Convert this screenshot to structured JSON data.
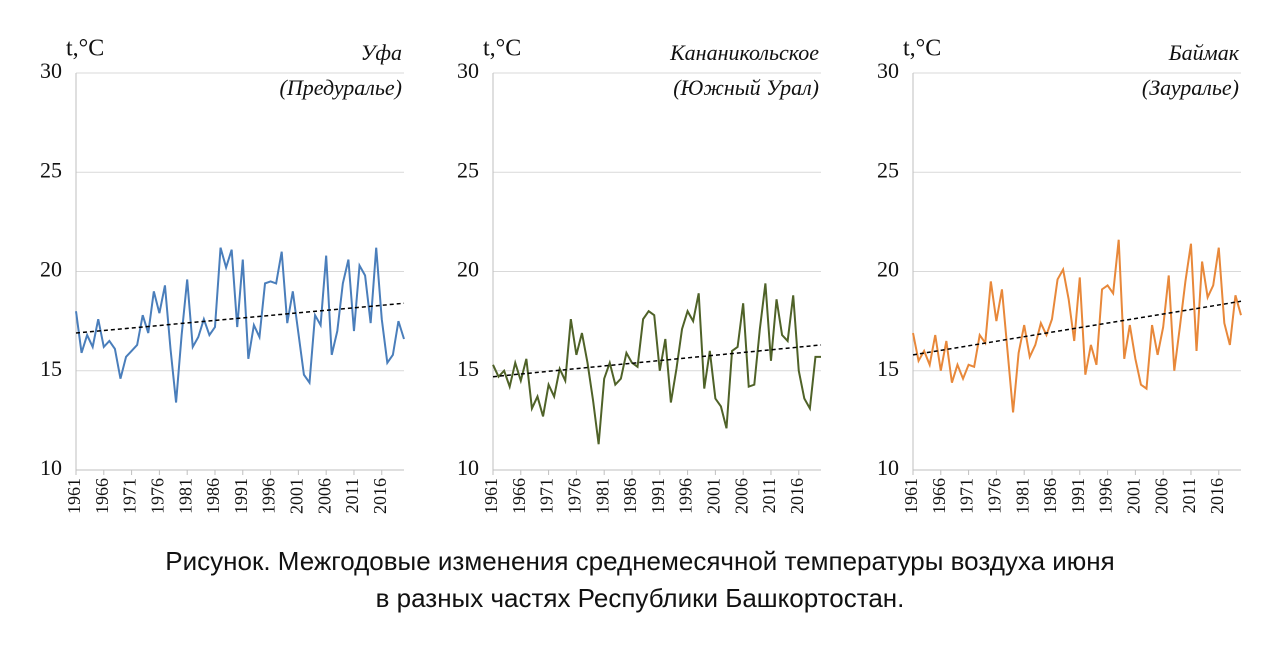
{
  "chart_data": [
    {
      "type": "line",
      "title": "Уфа",
      "subtitle": "(Предуралье)",
      "y_label": "t,°C",
      "x": [
        1961,
        1962,
        1963,
        1964,
        1965,
        1966,
        1967,
        1968,
        1969,
        1970,
        1971,
        1972,
        1973,
        1974,
        1975,
        1976,
        1977,
        1978,
        1979,
        1980,
        1981,
        1982,
        1983,
        1984,
        1985,
        1986,
        1987,
        1988,
        1989,
        1990,
        1991,
        1992,
        1993,
        1994,
        1995,
        1996,
        1997,
        1998,
        1999,
        2000,
        2001,
        2002,
        2003,
        2004,
        2005,
        2006,
        2007,
        2008,
        2009,
        2010,
        2011,
        2012,
        2013,
        2014,
        2015,
        2016,
        2017,
        2018,
        2019,
        2020
      ],
      "xlim": [
        1961,
        2020
      ],
      "xticks": [
        1961,
        1966,
        1971,
        1976,
        1981,
        1986,
        1991,
        1996,
        2001,
        2006,
        2011,
        2016
      ],
      "ylim": [
        10,
        30
      ],
      "yticks": [
        10,
        15,
        20,
        25,
        30
      ],
      "grid": true,
      "series": [
        {
          "color": "#4a7ebb",
          "values": [
            18.0,
            15.9,
            16.8,
            16.2,
            17.6,
            16.2,
            16.5,
            16.1,
            14.6,
            15.7,
            16.0,
            16.3,
            17.8,
            16.9,
            19.0,
            17.9,
            19.3,
            16.1,
            13.4,
            16.8,
            19.6,
            16.2,
            16.7,
            17.6,
            16.8,
            17.2,
            21.2,
            20.2,
            21.1,
            17.2,
            20.6,
            15.6,
            17.3,
            16.7,
            19.4,
            19.5,
            19.4,
            21.0,
            17.4,
            19.0,
            16.9,
            14.8,
            14.4,
            17.8,
            17.3,
            20.8,
            15.8,
            17.0,
            19.4,
            20.6,
            17.0,
            20.3,
            19.8,
            17.4,
            21.2,
            17.6,
            15.4,
            15.8,
            17.5,
            16.6
          ]
        }
      ],
      "trend": {
        "color": "#000000",
        "values": [
          16.9,
          18.4
        ]
      }
    },
    {
      "type": "line",
      "title": "Кананикольское",
      "subtitle": "(Южный Урал)",
      "y_label": "t,°C",
      "x": [
        1961,
        1962,
        1963,
        1964,
        1965,
        1966,
        1967,
        1968,
        1969,
        1970,
        1971,
        1972,
        1973,
        1974,
        1975,
        1976,
        1977,
        1978,
        1979,
        1980,
        1981,
        1982,
        1983,
        1984,
        1985,
        1986,
        1987,
        1988,
        1989,
        1990,
        1991,
        1992,
        1993,
        1994,
        1995,
        1996,
        1997,
        1998,
        1999,
        2000,
        2001,
        2002,
        2003,
        2004,
        2005,
        2006,
        2007,
        2008,
        2009,
        2010,
        2011,
        2012,
        2013,
        2014,
        2015,
        2016,
        2017,
        2018,
        2019,
        2020
      ],
      "xlim": [
        1961,
        2020
      ],
      "xticks": [
        1961,
        1966,
        1971,
        1976,
        1981,
        1986,
        1991,
        1996,
        2001,
        2006,
        2011,
        2016
      ],
      "ylim": [
        10,
        30
      ],
      "yticks": [
        10,
        15,
        20,
        25,
        30
      ],
      "grid": true,
      "series": [
        {
          "color": "#4f6228",
          "values": [
            15.3,
            14.7,
            15.0,
            14.2,
            15.4,
            14.5,
            15.6,
            13.1,
            13.7,
            12.7,
            14.3,
            13.7,
            15.1,
            14.5,
            17.6,
            15.8,
            16.9,
            15.4,
            13.5,
            11.3,
            14.6,
            15.4,
            14.3,
            14.6,
            15.9,
            15.4,
            15.2,
            17.6,
            18.0,
            17.8,
            15.0,
            16.6,
            13.4,
            15.1,
            17.1,
            18.0,
            17.5,
            18.9,
            14.1,
            16.0,
            13.6,
            13.2,
            12.1,
            16.0,
            16.2,
            18.4,
            14.2,
            14.3,
            17.1,
            19.4,
            15.5,
            18.6,
            16.8,
            16.5,
            18.8,
            15.0,
            13.6,
            13.1,
            15.7,
            15.7
          ]
        }
      ],
      "trend": {
        "color": "#000000",
        "values": [
          14.7,
          16.3
        ]
      }
    },
    {
      "type": "line",
      "title": "Баймак",
      "subtitle": "(Зауралье)",
      "y_label": "t,°C",
      "x": [
        1961,
        1962,
        1963,
        1964,
        1965,
        1966,
        1967,
        1968,
        1969,
        1970,
        1971,
        1972,
        1973,
        1974,
        1975,
        1976,
        1977,
        1978,
        1979,
        1980,
        1981,
        1982,
        1983,
        1984,
        1985,
        1986,
        1987,
        1988,
        1989,
        1990,
        1991,
        1992,
        1993,
        1994,
        1995,
        1996,
        1997,
        1998,
        1999,
        2000,
        2001,
        2002,
        2003,
        2004,
        2005,
        2006,
        2007,
        2008,
        2009,
        2010,
        2011,
        2012,
        2013,
        2014,
        2015,
        2016,
        2017,
        2018,
        2019,
        2020
      ],
      "xlim": [
        1961,
        2020
      ],
      "xticks": [
        1961,
        1966,
        1971,
        1976,
        1981,
        1986,
        1991,
        1996,
        2001,
        2006,
        2011,
        2016
      ],
      "ylim": [
        10,
        30
      ],
      "yticks": [
        10,
        15,
        20,
        25,
        30
      ],
      "grid": true,
      "series": [
        {
          "color": "#e8883a",
          "values": [
            16.9,
            15.5,
            16.0,
            15.3,
            16.8,
            15.0,
            16.5,
            14.4,
            15.3,
            14.6,
            15.3,
            15.2,
            16.8,
            16.4,
            19.5,
            17.5,
            19.1,
            16.0,
            12.9,
            15.9,
            17.3,
            15.7,
            16.3,
            17.4,
            16.8,
            17.6,
            19.6,
            20.1,
            18.6,
            16.5,
            19.7,
            14.8,
            16.3,
            15.3,
            19.1,
            19.3,
            18.9,
            21.6,
            15.6,
            17.3,
            15.6,
            14.3,
            14.1,
            17.3,
            15.8,
            17.2,
            19.8,
            15.0,
            17.2,
            19.5,
            21.4,
            16.0,
            20.5,
            18.7,
            19.3,
            21.2,
            17.4,
            16.3,
            18.8,
            17.8
          ]
        }
      ],
      "trend": {
        "color": "#000000",
        "values": [
          15.8,
          18.5
        ]
      }
    }
  ],
  "caption": [
    "Рисунок. Межгодовые изменения среднемесячной температуры воздуха июня",
    "в разных частях Республики Башкортостан."
  ]
}
